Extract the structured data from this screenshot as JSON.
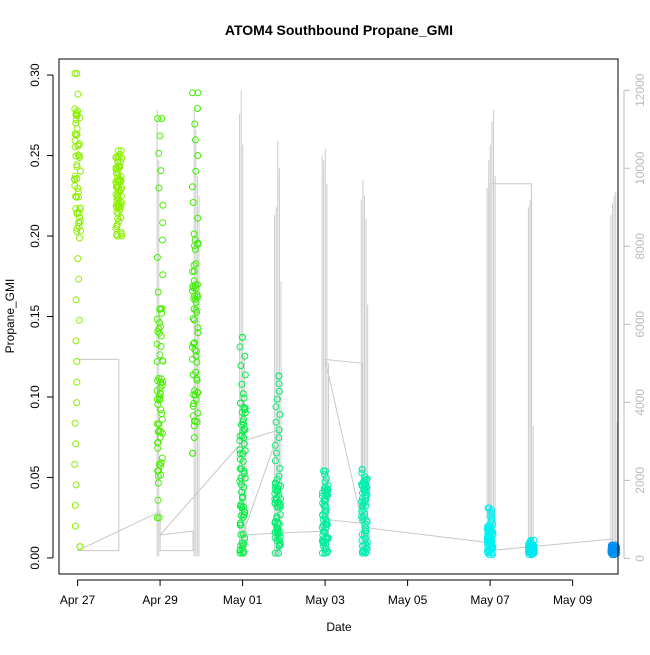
{
  "chart_data": {
    "type": "scatter",
    "title": "ATOM4 Southbound Propane_GMI",
    "xlabel": "Date",
    "ylabel": "Propane_GMI",
    "x_tick_labels": [
      "Apr 27",
      "Apr 29",
      "May 01",
      "May 03",
      "May 05",
      "May 07",
      "May 09"
    ],
    "x_tick_days": [
      0,
      2,
      4,
      6,
      8,
      10,
      12
    ],
    "xlim": [
      -0.45,
      13.1
    ],
    "ylim": [
      -0.01,
      0.31
    ],
    "y_ticks": [
      0.0,
      0.05,
      0.1,
      0.15,
      0.2,
      0.25,
      0.3
    ],
    "y_tick_labels": [
      "0.00",
      "0.05",
      "0.10",
      "0.15",
      "0.20",
      "0.25",
      "0.30"
    ],
    "y2_ticks": [
      0,
      2000,
      4000,
      6000,
      8000,
      10000,
      12000
    ],
    "y2_tick_labels": [
      "0",
      "2000",
      "4000",
      "6000",
      "8000",
      "10000",
      "12000"
    ],
    "y2lim": [
      -400,
      12800
    ],
    "grid": false,
    "point_clusters": [
      {
        "day": 0.0,
        "ymin": 0.007,
        "ymax": 0.301,
        "color": "#8cf000",
        "dense_min": 0.2,
        "dense_max": 0.28
      },
      {
        "day": 1.0,
        "ymin": 0.2,
        "ymax": 0.253,
        "color": "#8cf000",
        "dense_min": 0.2,
        "dense_max": 0.25
      },
      {
        "day": 2.0,
        "ymin": 0.025,
        "ymax": 0.273,
        "color": "#4df000",
        "dense_min": 0.05,
        "dense_max": 0.16
      },
      {
        "day": 2.85,
        "ymin": 0.065,
        "ymax": 0.289,
        "color": "#3cf000",
        "dense_min": 0.08,
        "dense_max": 0.2
      },
      {
        "day": 4.0,
        "ymin": 0.003,
        "ymax": 0.137,
        "color": "#00f040",
        "dense_min": 0.003,
        "dense_max": 0.1
      },
      {
        "day": 4.85,
        "ymin": 0.003,
        "ymax": 0.113,
        "color": "#00f070",
        "dense_min": 0.005,
        "dense_max": 0.05
      },
      {
        "day": 6.0,
        "ymin": 0.003,
        "ymax": 0.054,
        "color": "#00f0a0",
        "dense_min": 0.003,
        "dense_max": 0.045
      },
      {
        "day": 6.95,
        "ymin": 0.003,
        "ymax": 0.055,
        "color": "#00f0b0",
        "dense_min": 0.003,
        "dense_max": 0.05
      },
      {
        "day": 10.0,
        "ymin": 0.002,
        "ymax": 0.031,
        "color": "#00f0f0",
        "dense_min": 0.003,
        "dense_max": 0.02
      },
      {
        "day": 11.0,
        "ymin": 0.002,
        "ymax": 0.011,
        "color": "#00e8f0",
        "dense_min": 0.003,
        "dense_max": 0.008
      },
      {
        "day": 13.0,
        "ymin": 0.002,
        "ymax": 0.008,
        "color": "#0090f0",
        "dense_min": 0.003,
        "dense_max": 0.007
      }
    ],
    "altitude_series": [
      {
        "day": 4.0,
        "peaks": [
          11400,
          12000,
          10600,
          5200,
          3000
        ]
      },
      {
        "day": 4.85,
        "peaks": [
          8800,
          9000,
          10700,
          10000,
          7100
        ]
      },
      {
        "day": 6.0,
        "peaks": [
          10300,
          10200,
          10500,
          9600,
          5000
        ]
      },
      {
        "day": 6.95,
        "peaks": [
          9200,
          9700,
          9300,
          8700,
          6500
        ]
      },
      {
        "day": 10.0,
        "peaks": [
          9500,
          10200,
          10600,
          11200,
          11500,
          9800
        ]
      },
      {
        "day": 11.0,
        "peaks": [
          9000,
          9200,
          9400,
          3400
        ]
      },
      {
        "day": 13.0,
        "peaks": [
          8800,
          9100,
          9300,
          9400,
          3500
        ]
      },
      {
        "day": 2.9,
        "peaks": [
          11500,
          11000,
          9800,
          9300
        ]
      },
      {
        "day": 2.0,
        "peaks": [
          11500,
          10200
        ]
      }
    ],
    "connector_path": [
      [
        0.0,
        5100
      ],
      [
        1.0,
        5100
      ],
      [
        1.0,
        200
      ],
      [
        0.0,
        200
      ],
      [
        2.0,
        1200
      ],
      [
        2.0,
        200
      ],
      [
        2.8,
        200
      ],
      [
        2.8,
        700
      ],
      [
        2.0,
        600
      ],
      [
        4.0,
        3000
      ],
      [
        4.9,
        3300
      ],
      [
        4.0,
        600
      ],
      [
        4.9,
        650
      ],
      [
        6.0,
        700
      ],
      [
        6.0,
        1000
      ],
      [
        6.9,
        900
      ],
      [
        6.0,
        5100
      ],
      [
        6.9,
        5000
      ],
      [
        6.9,
        800
      ],
      [
        10.0,
        400
      ],
      [
        10.0,
        9600
      ],
      [
        11.0,
        9600
      ],
      [
        11.0,
        300
      ],
      [
        13.0,
        500
      ],
      [
        10.0,
        200
      ]
    ]
  }
}
